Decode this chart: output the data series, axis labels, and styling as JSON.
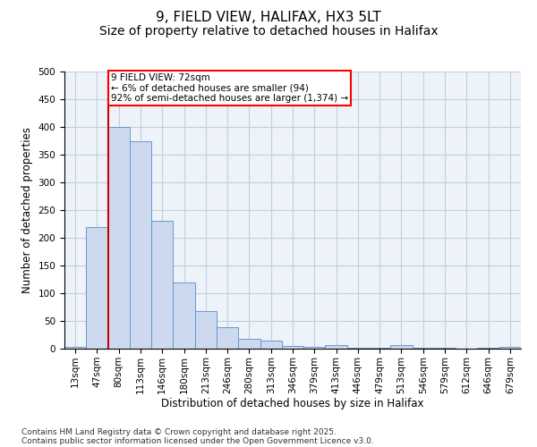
{
  "title1": "9, FIELD VIEW, HALIFAX, HX3 5LT",
  "title2": "Size of property relative to detached houses in Halifax",
  "xlabel": "Distribution of detached houses by size in Halifax",
  "ylabel": "Number of detached properties",
  "categories": [
    "13sqm",
    "47sqm",
    "80sqm",
    "113sqm",
    "146sqm",
    "180sqm",
    "213sqm",
    "246sqm",
    "280sqm",
    "313sqm",
    "346sqm",
    "379sqm",
    "413sqm",
    "446sqm",
    "479sqm",
    "513sqm",
    "546sqm",
    "579sqm",
    "612sqm",
    "646sqm",
    "679sqm"
  ],
  "values": [
    4,
    220,
    400,
    375,
    230,
    120,
    68,
    38,
    18,
    14,
    5,
    4,
    7,
    2,
    1,
    7,
    2,
    1,
    0,
    1,
    3
  ],
  "bar_color": "#ccd9ee",
  "bar_edge_color": "#6699cc",
  "red_line_index": 2,
  "annotation_text": "9 FIELD VIEW: 72sqm\n← 6% of detached houses are smaller (94)\n92% of semi-detached houses are larger (1,374) →",
  "annotation_box_color": "white",
  "annotation_box_edge_color": "red",
  "red_line_color": "#cc0000",
  "ylim": [
    0,
    500
  ],
  "yticks": [
    0,
    50,
    100,
    150,
    200,
    250,
    300,
    350,
    400,
    450,
    500
  ],
  "grid_color": "#c0cfe0",
  "background_color": "#eef2f9",
  "footer1": "Contains HM Land Registry data © Crown copyright and database right 2025.",
  "footer2": "Contains public sector information licensed under the Open Government Licence v3.0.",
  "title1_fontsize": 11,
  "title2_fontsize": 10,
  "axis_label_fontsize": 8.5,
  "tick_fontsize": 7.5,
  "footer_fontsize": 6.5,
  "annotation_fontsize": 7.5
}
